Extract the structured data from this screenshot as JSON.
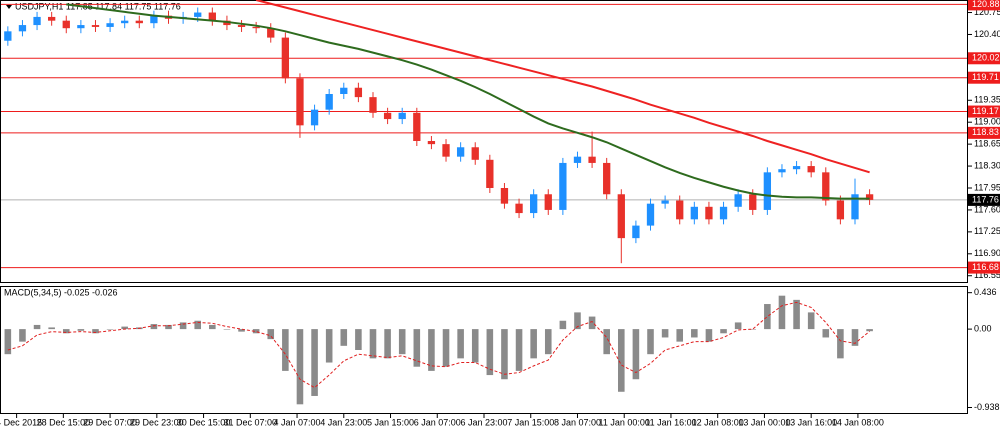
{
  "chart_data": [
    {
      "type": "candlestick",
      "title": "USDJPY,H1 117.85 117.84 117.75 117.76",
      "x": [
        2,
        7,
        12,
        17,
        22,
        27,
        32,
        37,
        42,
        47,
        52,
        57,
        62,
        67,
        72,
        77,
        82,
        87,
        92,
        97,
        102,
        107,
        112,
        117,
        122,
        127,
        132,
        137,
        142,
        147,
        152,
        157,
        162,
        167,
        172,
        177,
        182,
        187,
        192,
        197,
        202,
        207,
        212,
        217,
        222,
        227,
        232,
        237,
        242,
        247,
        252,
        257,
        262,
        267,
        272,
        277,
        282,
        287,
        292,
        297
      ],
      "open": [
        120.3,
        120.45,
        120.55,
        120.68,
        120.62,
        120.5,
        120.55,
        120.52,
        120.58,
        120.62,
        120.58,
        120.7,
        120.65,
        120.68,
        120.75,
        120.62,
        120.55,
        120.52,
        120.5,
        120.35,
        119.7,
        118.95,
        119.2,
        119.45,
        119.55,
        119.4,
        119.15,
        119.05,
        119.15,
        118.7,
        118.65,
        118.45,
        118.6,
        118.4,
        117.95,
        117.7,
        117.55,
        117.85,
        117.6,
        118.35,
        118.45,
        118.35,
        117.85,
        117.15,
        117.35,
        117.7,
        117.75,
        117.45,
        117.65,
        117.45,
        117.65,
        117.85,
        117.6,
        118.2,
        118.25,
        118.3,
        118.2,
        117.75,
        117.45,
        117.85
      ],
      "high": [
        120.53,
        120.63,
        120.76,
        120.76,
        120.7,
        120.63,
        120.63,
        120.66,
        120.7,
        120.7,
        120.78,
        120.78,
        120.76,
        120.83,
        120.83,
        120.7,
        120.63,
        120.6,
        120.58,
        120.43,
        119.78,
        119.28,
        119.53,
        119.63,
        119.63,
        119.48,
        119.23,
        119.23,
        119.23,
        118.78,
        118.73,
        118.68,
        118.68,
        118.48,
        118.03,
        117.78,
        117.93,
        117.93,
        118.43,
        118.53,
        118.85,
        118.43,
        117.93,
        117.43,
        117.78,
        117.83,
        117.83,
        117.73,
        117.73,
        117.73,
        117.93,
        117.93,
        118.28,
        118.33,
        118.38,
        118.38,
        118.28,
        117.83,
        118.1,
        117.93
      ],
      "low": [
        120.22,
        120.37,
        120.47,
        120.54,
        120.42,
        120.42,
        120.44,
        120.44,
        120.5,
        120.5,
        120.5,
        120.57,
        120.57,
        120.6,
        120.54,
        120.47,
        120.44,
        120.42,
        120.27,
        119.62,
        118.75,
        118.87,
        119.12,
        119.37,
        119.32,
        119.07,
        118.97,
        118.97,
        118.62,
        118.57,
        118.37,
        118.37,
        118.32,
        117.87,
        117.62,
        117.47,
        117.47,
        117.52,
        117.52,
        118.27,
        118.27,
        117.77,
        116.75,
        117.07,
        117.27,
        117.62,
        117.37,
        117.37,
        117.37,
        117.37,
        117.57,
        117.52,
        117.52,
        118.12,
        118.17,
        118.12,
        117.67,
        117.37,
        117.37,
        117.68
      ],
      "close": [
        120.45,
        120.55,
        120.68,
        120.62,
        120.5,
        120.55,
        120.52,
        120.58,
        120.62,
        120.58,
        120.7,
        120.65,
        120.68,
        120.75,
        120.62,
        120.55,
        120.52,
        120.5,
        120.35,
        119.7,
        118.95,
        119.2,
        119.45,
        119.55,
        119.4,
        119.15,
        119.05,
        119.15,
        118.7,
        118.65,
        118.45,
        118.6,
        118.4,
        117.95,
        117.7,
        117.55,
        117.85,
        117.6,
        118.35,
        118.45,
        118.35,
        117.85,
        117.15,
        117.35,
        117.7,
        117.75,
        117.45,
        117.65,
        117.45,
        117.65,
        117.85,
        117.6,
        118.2,
        118.25,
        118.3,
        118.2,
        117.75,
        117.45,
        117.85,
        117.76
      ],
      "up_color": "#1e90ff",
      "down_color": "#e8312a",
      "series": [
        {
          "color": "#ee2222",
          "values": [
            null,
            null,
            null,
            null,
            null,
            null,
            null,
            null,
            null,
            null,
            null,
            null,
            null,
            null,
            null,
            null,
            null,
            120.95,
            120.89,
            120.83,
            120.77,
            120.71,
            120.65,
            120.59,
            120.53,
            120.47,
            120.41,
            120.35,
            120.29,
            120.23,
            120.17,
            120.11,
            120.05,
            119.99,
            119.93,
            119.87,
            119.81,
            119.75,
            119.69,
            119.63,
            119.57,
            119.5,
            119.43,
            119.36,
            119.28,
            119.21,
            119.14,
            119.07,
            118.99,
            118.92,
            118.85,
            118.78,
            118.7,
            118.63,
            118.56,
            118.49,
            118.41,
            118.34,
            118.27,
            118.2
          ]
        },
        {
          "color": "#2e6b1e",
          "values": [
            null,
            null,
            null,
            null,
            120.88,
            120.85,
            120.82,
            120.79,
            120.76,
            120.73,
            120.7,
            120.68,
            120.66,
            120.64,
            120.62,
            120.6,
            120.57,
            120.54,
            120.5,
            120.45,
            120.39,
            120.33,
            120.27,
            120.22,
            120.17,
            120.11,
            120.05,
            119.99,
            119.92,
            119.84,
            119.75,
            119.66,
            119.56,
            119.45,
            119.33,
            119.21,
            119.09,
            118.98,
            118.9,
            118.83,
            118.76,
            118.68,
            118.58,
            118.48,
            118.38,
            118.28,
            118.19,
            118.11,
            118.04,
            117.97,
            117.91,
            117.86,
            117.83,
            117.81,
            117.8,
            117.8,
            117.79,
            117.78,
            117.78,
            117.78
          ]
        }
      ],
      "levels": {
        "color": "#ee1c1c",
        "values": [
          120.88,
          120.02,
          119.71,
          119.17,
          118.83,
          116.68
        ]
      },
      "last_price": 117.76,
      "xlim": [
        0,
        330
      ],
      "xticks": [
        {
          "value": 5,
          "label": "24 Dec 2015"
        },
        {
          "value": 21,
          "label": "28 Dec 15:00"
        },
        {
          "value": 37,
          "label": "29 Dec 07:00"
        },
        {
          "value": 53,
          "label": "29 Dec 23:00"
        },
        {
          "value": 69,
          "label": "30 Dec 15:00"
        },
        {
          "value": 85,
          "label": "31 Dec 07:00"
        },
        {
          "value": 101,
          "label": "4 Jan 07:00"
        },
        {
          "value": 117,
          "label": "4 Jan 23:00"
        },
        {
          "value": 133,
          "label": "5 Jan 15:00"
        },
        {
          "value": 149,
          "label": "6 Jan 07:00"
        },
        {
          "value": 165,
          "label": "6 Jan 23:00"
        },
        {
          "value": 181,
          "label": "7 Jan 15:00"
        },
        {
          "value": 197,
          "label": "8 Jan 07:00"
        },
        {
          "value": 213,
          "label": "11 Jan 00:00"
        },
        {
          "value": 229,
          "label": "11 Jan 16:00"
        },
        {
          "value": 245,
          "label": "12 Jan 08:00"
        },
        {
          "value": 261,
          "label": "13 Jan 00:00"
        },
        {
          "value": 277,
          "label": "13 Jan 16:00"
        },
        {
          "value": 293,
          "label": "14 Jan 08:00"
        }
      ],
      "ylim": [
        116.45,
        120.95
      ],
      "yticks": [
        120.75,
        {
          "value": 120.4,
          "label": "120.40"
        },
        119.35,
        {
          "value": 119,
          "label": "119.00"
        },
        118.65,
        {
          "value": 118.3,
          "label": "118.30"
        },
        117.95,
        {
          "value": 117.6,
          "label": "117.60"
        },
        117.25,
        {
          "value": 116.9,
          "label": "116.90"
        },
        116.55
      ]
    },
    {
      "type": "bar",
      "title": "MACD(5,34,5) -0.025 -0.026",
      "color": "#8a8a8a",
      "values": [
        -0.3,
        -0.15,
        0.05,
        0.02,
        -0.05,
        -0.02,
        -0.05,
        0.0,
        0.03,
        0.02,
        0.06,
        0.05,
        0.08,
        0.1,
        0.05,
        0.0,
        -0.03,
        -0.05,
        -0.12,
        -0.5,
        -0.9,
        -0.8,
        -0.4,
        -0.2,
        -0.25,
        -0.35,
        -0.35,
        -0.3,
        -0.45,
        -0.5,
        -0.45,
        -0.35,
        -0.4,
        -0.55,
        -0.6,
        -0.5,
        -0.35,
        -0.3,
        0.1,
        0.2,
        0.15,
        -0.3,
        -0.75,
        -0.6,
        -0.3,
        -0.1,
        -0.15,
        -0.1,
        -0.15,
        -0.05,
        0.08,
        0.0,
        0.3,
        0.4,
        0.35,
        0.2,
        -0.1,
        -0.35,
        -0.2,
        -0.025
      ],
      "signal": {
        "color": "#e02020",
        "values": [
          -0.25,
          -0.2,
          -0.07,
          -0.03,
          -0.04,
          -0.03,
          -0.04,
          -0.02,
          0.0,
          0.01,
          0.04,
          0.04,
          0.06,
          0.08,
          0.07,
          0.03,
          0.0,
          -0.03,
          -0.08,
          -0.3,
          -0.6,
          -0.7,
          -0.55,
          -0.38,
          -0.3,
          -0.32,
          -0.34,
          -0.32,
          -0.38,
          -0.44,
          -0.45,
          -0.4,
          -0.4,
          -0.48,
          -0.54,
          -0.52,
          -0.44,
          -0.37,
          -0.13,
          0.03,
          0.09,
          -0.1,
          -0.43,
          -0.52,
          -0.41,
          -0.25,
          -0.2,
          -0.15,
          -0.15,
          -0.1,
          -0.01,
          0.0,
          0.15,
          0.28,
          0.32,
          0.26,
          0.08,
          -0.14,
          -0.17,
          -0.026
        ]
      },
      "ylim": [
        -0.98,
        0.48
      ],
      "yticks": [
        0.436,
        {
          "value": 0,
          "label": "0.00"
        },
        -0.938
      ]
    }
  ]
}
